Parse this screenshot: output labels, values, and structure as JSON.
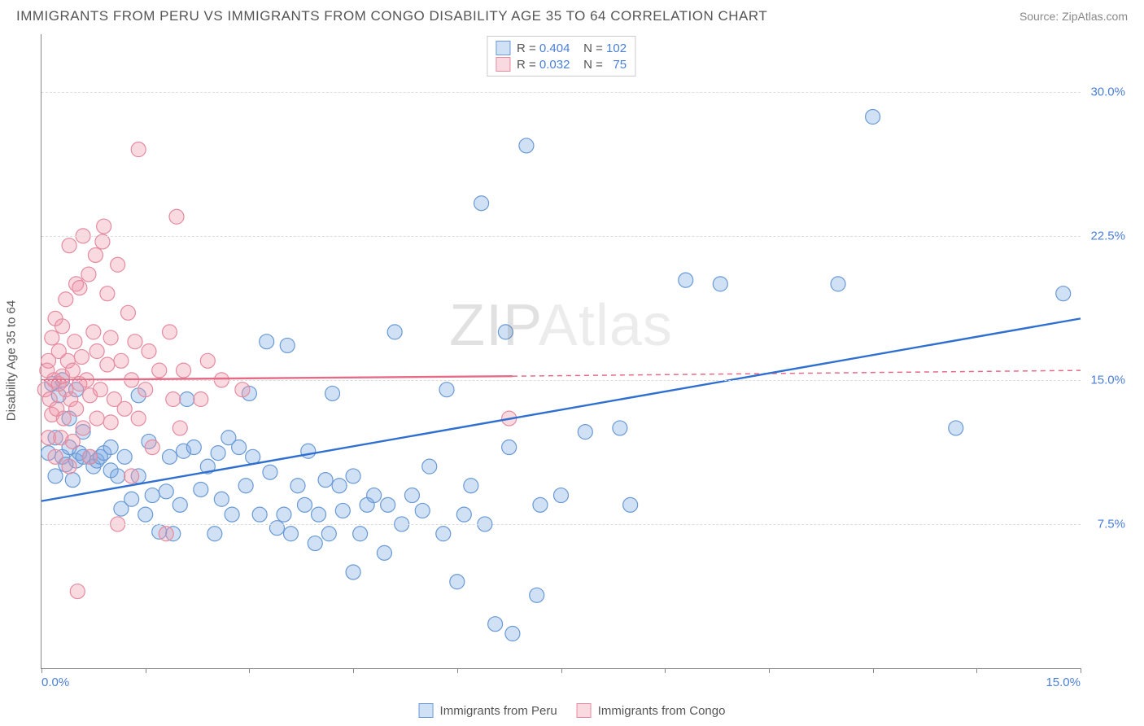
{
  "title": "IMMIGRANTS FROM PERU VS IMMIGRANTS FROM CONGO DISABILITY AGE 35 TO 64 CORRELATION CHART",
  "source_label": "Source: ",
  "source_value": "ZipAtlas.com",
  "ylabel": "Disability Age 35 to 64",
  "watermark_a": "ZIP",
  "watermark_b": "Atlas",
  "chart": {
    "type": "scatter",
    "background": "#ffffff",
    "grid_color": "#dddddd",
    "axis_color": "#888888",
    "xlim": [
      0,
      15
    ],
    "ylim": [
      0,
      33
    ],
    "xticks": [
      0,
      15
    ],
    "xtick_labels": [
      "0.0%",
      "15.0%"
    ],
    "xtick_minor": [
      1.5,
      3.0,
      4.5,
      6.0,
      7.5,
      9.0,
      10.5,
      12.0,
      13.5
    ],
    "yticks": [
      7.5,
      15.0,
      22.5,
      30.0
    ],
    "ytick_labels": [
      "7.5%",
      "15.0%",
      "22.5%",
      "30.0%"
    ],
    "marker_radius": 9,
    "marker_stroke_width": 1.2,
    "line_width": 2.4,
    "series": [
      {
        "key": "peru",
        "label": "Immigrants from Peru",
        "fill": "rgba(120,165,225,0.35)",
        "stroke": "#6a9ad4",
        "line_color": "#2f6fd0",
        "R": "0.404",
        "N": "102",
        "trend": {
          "x1": 0,
          "y1": 8.7,
          "x2": 15,
          "y2": 18.2
        },
        "points": [
          [
            0.1,
            11.2
          ],
          [
            0.15,
            14.8
          ],
          [
            0.2,
            12.0
          ],
          [
            0.2,
            10.0
          ],
          [
            0.25,
            14.2
          ],
          [
            0.3,
            11.0
          ],
          [
            0.3,
            15.0
          ],
          [
            0.35,
            10.6
          ],
          [
            0.4,
            13.0
          ],
          [
            0.4,
            11.5
          ],
          [
            0.45,
            9.8
          ],
          [
            0.5,
            14.5
          ],
          [
            0.5,
            10.8
          ],
          [
            0.55,
            11.2
          ],
          [
            0.6,
            11.0
          ],
          [
            0.6,
            12.3
          ],
          [
            0.7,
            11.0
          ],
          [
            0.75,
            10.5
          ],
          [
            0.8,
            10.8
          ],
          [
            0.85,
            11.0
          ],
          [
            0.9,
            11.2
          ],
          [
            1.0,
            10.3
          ],
          [
            1.0,
            11.5
          ],
          [
            1.1,
            10.0
          ],
          [
            1.15,
            8.3
          ],
          [
            1.2,
            11.0
          ],
          [
            1.3,
            8.8
          ],
          [
            1.4,
            14.2
          ],
          [
            1.4,
            10.0
          ],
          [
            1.5,
            8.0
          ],
          [
            1.55,
            11.8
          ],
          [
            1.6,
            9.0
          ],
          [
            1.7,
            7.1
          ],
          [
            1.8,
            9.2
          ],
          [
            1.85,
            11.0
          ],
          [
            1.9,
            7.0
          ],
          [
            2.0,
            8.5
          ],
          [
            2.05,
            11.3
          ],
          [
            2.1,
            14.0
          ],
          [
            2.2,
            11.5
          ],
          [
            2.3,
            9.3
          ],
          [
            2.4,
            10.5
          ],
          [
            2.5,
            7.0
          ],
          [
            2.55,
            11.2
          ],
          [
            2.6,
            8.8
          ],
          [
            2.7,
            12.0
          ],
          [
            2.75,
            8.0
          ],
          [
            2.85,
            11.5
          ],
          [
            2.95,
            9.5
          ],
          [
            3.0,
            14.3
          ],
          [
            3.05,
            11.0
          ],
          [
            3.15,
            8.0
          ],
          [
            3.25,
            17.0
          ],
          [
            3.3,
            10.2
          ],
          [
            3.4,
            7.3
          ],
          [
            3.5,
            8.0
          ],
          [
            3.55,
            16.8
          ],
          [
            3.6,
            7.0
          ],
          [
            3.7,
            9.5
          ],
          [
            3.8,
            8.5
          ],
          [
            3.85,
            11.3
          ],
          [
            3.95,
            6.5
          ],
          [
            4.0,
            8.0
          ],
          [
            4.1,
            9.8
          ],
          [
            4.15,
            7.0
          ],
          [
            4.2,
            14.3
          ],
          [
            4.3,
            9.5
          ],
          [
            4.35,
            8.2
          ],
          [
            4.5,
            10.0
          ],
          [
            4.5,
            5.0
          ],
          [
            4.6,
            7.0
          ],
          [
            4.7,
            8.5
          ],
          [
            4.8,
            9.0
          ],
          [
            4.95,
            6.0
          ],
          [
            5.0,
            8.5
          ],
          [
            5.1,
            17.5
          ],
          [
            5.2,
            7.5
          ],
          [
            5.35,
            9.0
          ],
          [
            5.5,
            8.2
          ],
          [
            5.6,
            10.5
          ],
          [
            5.8,
            7.0
          ],
          [
            5.85,
            14.5
          ],
          [
            6.0,
            4.5
          ],
          [
            6.1,
            8.0
          ],
          [
            6.2,
            9.5
          ],
          [
            6.35,
            24.2
          ],
          [
            6.4,
            7.5
          ],
          [
            6.55,
            2.3
          ],
          [
            6.7,
            17.5
          ],
          [
            6.75,
            11.5
          ],
          [
            6.8,
            1.8
          ],
          [
            7.0,
            27.2
          ],
          [
            7.15,
            3.8
          ],
          [
            7.2,
            8.5
          ],
          [
            7.5,
            9.0
          ],
          [
            7.85,
            12.3
          ],
          [
            8.35,
            12.5
          ],
          [
            8.5,
            8.5
          ],
          [
            9.3,
            20.2
          ],
          [
            9.8,
            20.0
          ],
          [
            11.5,
            20.0
          ],
          [
            12.0,
            28.7
          ],
          [
            13.2,
            12.5
          ],
          [
            14.75,
            19.5
          ]
        ]
      },
      {
        "key": "congo",
        "label": "Immigrants from Congo",
        "fill": "rgba(240,150,170,0.35)",
        "stroke": "#e48ba0",
        "line_color": "#e56b87",
        "R": "0.032",
        "N": "75",
        "trend": {
          "x1": 0,
          "y1": 15.0,
          "x2": 6.8,
          "y2": 15.2,
          "x2_dash": 15,
          "y2_dash": 15.5
        },
        "points": [
          [
            0.05,
            14.5
          ],
          [
            0.08,
            15.5
          ],
          [
            0.1,
            12.0
          ],
          [
            0.1,
            16.0
          ],
          [
            0.12,
            14.0
          ],
          [
            0.15,
            13.2
          ],
          [
            0.15,
            17.2
          ],
          [
            0.18,
            15.0
          ],
          [
            0.2,
            11.0
          ],
          [
            0.2,
            18.2
          ],
          [
            0.22,
            13.5
          ],
          [
            0.25,
            16.5
          ],
          [
            0.25,
            14.8
          ],
          [
            0.28,
            12.0
          ],
          [
            0.3,
            15.2
          ],
          [
            0.3,
            17.8
          ],
          [
            0.32,
            13.0
          ],
          [
            0.35,
            14.5
          ],
          [
            0.35,
            19.2
          ],
          [
            0.38,
            16.0
          ],
          [
            0.4,
            10.5
          ],
          [
            0.4,
            22.0
          ],
          [
            0.42,
            14.0
          ],
          [
            0.45,
            15.5
          ],
          [
            0.45,
            11.8
          ],
          [
            0.48,
            17.0
          ],
          [
            0.5,
            13.5
          ],
          [
            0.5,
            20.0
          ],
          [
            0.52,
            4.0
          ],
          [
            0.55,
            14.8
          ],
          [
            0.55,
            19.8
          ],
          [
            0.58,
            16.2
          ],
          [
            0.6,
            22.5
          ],
          [
            0.6,
            12.5
          ],
          [
            0.65,
            15.0
          ],
          [
            0.68,
            20.5
          ],
          [
            0.7,
            14.2
          ],
          [
            0.7,
            11.0
          ],
          [
            0.75,
            17.5
          ],
          [
            0.78,
            21.5
          ],
          [
            0.8,
            13.0
          ],
          [
            0.8,
            16.5
          ],
          [
            0.85,
            14.5
          ],
          [
            0.88,
            22.2
          ],
          [
            0.9,
            23.0
          ],
          [
            0.95,
            15.8
          ],
          [
            0.95,
            19.5
          ],
          [
            1.0,
            12.8
          ],
          [
            1.0,
            17.2
          ],
          [
            1.05,
            14.0
          ],
          [
            1.1,
            21.0
          ],
          [
            1.1,
            7.5
          ],
          [
            1.15,
            16.0
          ],
          [
            1.2,
            13.5
          ],
          [
            1.25,
            18.5
          ],
          [
            1.3,
            10.0
          ],
          [
            1.3,
            15.0
          ],
          [
            1.35,
            17.0
          ],
          [
            1.4,
            27.0
          ],
          [
            1.4,
            13.0
          ],
          [
            1.5,
            14.5
          ],
          [
            1.55,
            16.5
          ],
          [
            1.6,
            11.5
          ],
          [
            1.7,
            15.5
          ],
          [
            1.8,
            7.0
          ],
          [
            1.85,
            17.5
          ],
          [
            1.9,
            14.0
          ],
          [
            1.95,
            23.5
          ],
          [
            2.0,
            12.5
          ],
          [
            2.05,
            15.5
          ],
          [
            2.3,
            14.0
          ],
          [
            2.4,
            16.0
          ],
          [
            2.6,
            15.0
          ],
          [
            2.9,
            14.5
          ],
          [
            6.75,
            13.0
          ]
        ]
      }
    ]
  },
  "legend_top": {
    "r_label": "R =",
    "n_label": "N ="
  }
}
